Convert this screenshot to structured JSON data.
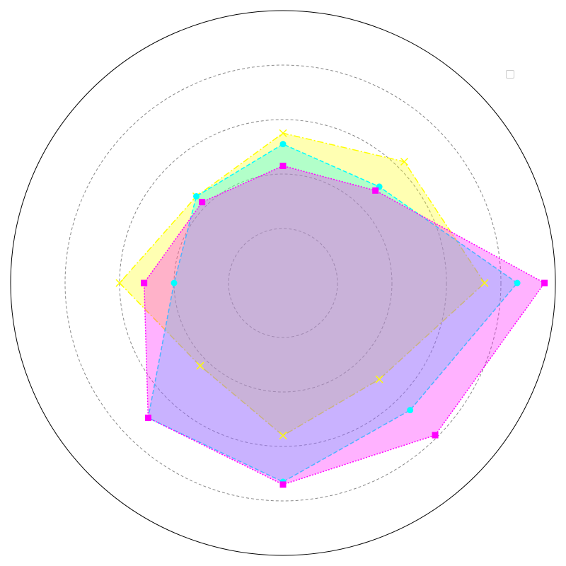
{
  "chart_data": {
    "type": "radar",
    "axes_count": 8,
    "rmax": 1.0,
    "grid": true,
    "grid_levels": [
      0.2,
      0.4,
      0.6,
      0.8
    ],
    "legend_location": "top-right",
    "series": [
      {
        "color": "#ffff00",
        "line_style": "dashdot",
        "marker": "x",
        "values": [
          0.74,
          0.63,
          0.55,
          0.45,
          0.6,
          0.43,
          0.56,
          0.5
        ]
      },
      {
        "color": "#00ffff",
        "line_style": "dashed",
        "marker": "circle",
        "values": [
          0.86,
          0.5,
          0.51,
          0.45,
          0.4,
          0.7,
          0.73,
          0.66
        ]
      },
      {
        "color": "#ff00ff",
        "line_style": "dotted",
        "marker": "square",
        "values": [
          0.96,
          0.48,
          0.43,
          0.42,
          0.51,
          0.7,
          0.74,
          0.79
        ]
      }
    ]
  }
}
